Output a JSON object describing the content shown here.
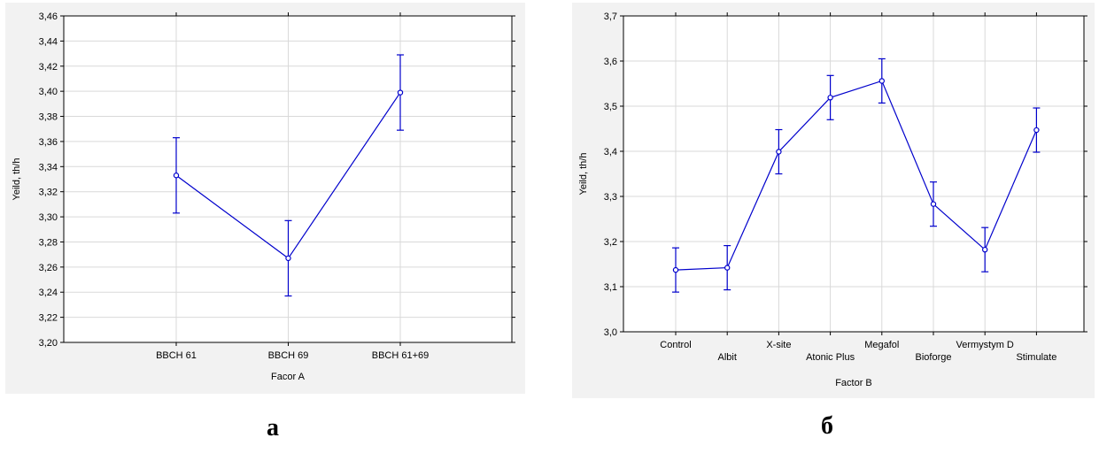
{
  "captions": {
    "a": "а",
    "b": "б"
  },
  "chart_data": [
    {
      "type": "line",
      "title": "",
      "xlabel": "Facor A",
      "ylabel": "Yeild, th/h",
      "categories": [
        "BBCH 61",
        "BBCH 69",
        "BBCH 61+69"
      ],
      "series": [
        {
          "values": [
            3.333,
            3.267,
            3.399
          ],
          "error_low": [
            3.303,
            3.237,
            3.369
          ],
          "error_high": [
            3.363,
            3.297,
            3.429
          ],
          "color": "#0000cc"
        }
      ],
      "ylim": [
        3.2,
        3.46
      ],
      "yticks": [
        "3,20",
        "3,22",
        "3,24",
        "3,26",
        "3,28",
        "3,30",
        "3,32",
        "3,34",
        "3,36",
        "3,38",
        "3,40",
        "3,42",
        "3,44",
        "3,46"
      ],
      "grid": true,
      "legend": "none"
    },
    {
      "type": "line",
      "title": "",
      "xlabel": "Factor B",
      "ylabel": "Yeild, th/h",
      "categories": [
        "Control",
        "Albit",
        "X-site",
        "Atonic Plus",
        "Megafol",
        "Bioforge",
        "Vermystym D",
        "Stimulate"
      ],
      "series": [
        {
          "values": [
            3.137,
            3.142,
            3.399,
            3.519,
            3.556,
            3.283,
            3.182,
            3.447
          ],
          "error_low": [
            3.088,
            3.093,
            3.35,
            3.47,
            3.507,
            3.234,
            3.133,
            3.398
          ],
          "error_high": [
            3.186,
            3.191,
            3.448,
            3.568,
            3.605,
            3.332,
            3.231,
            3.496
          ],
          "color": "#0000cc"
        }
      ],
      "ylim": [
        3.0,
        3.7
      ],
      "yticks": [
        "3,0",
        "3,1",
        "3,2",
        "3,3",
        "3,4",
        "3,5",
        "3,6",
        "3,7"
      ],
      "grid": true,
      "legend": "none"
    }
  ]
}
